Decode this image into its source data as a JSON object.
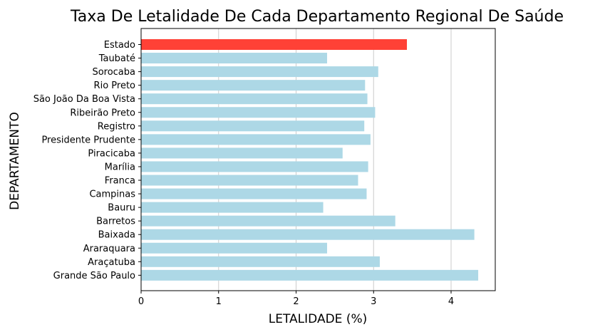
{
  "chart_data": {
    "type": "bar",
    "orientation": "horizontal",
    "title": "Taxa De Letalidade De Cada Departamento Regional De Saúde",
    "xlabel": "LETALIDADE (%)",
    "ylabel": "DEPARTAMENTO",
    "xlim": [
      0,
      4.57
    ],
    "xticks": [
      0,
      1,
      2,
      3,
      4
    ],
    "grid": "vertical",
    "categories": [
      "Estado",
      "Taubaté",
      "Sorocaba",
      "Rio Preto",
      "São João Da Boa Vista",
      "Ribeirão Preto",
      "Registro",
      "Presidente Prudente",
      "Piracicaba",
      "Marília",
      "Franca",
      "Campinas",
      "Bauru",
      "Barretos",
      "Baixada",
      "Araraquara",
      "Araçatuba",
      "Grande São Paulo"
    ],
    "values": [
      3.43,
      2.4,
      3.06,
      2.89,
      2.92,
      3.02,
      2.88,
      2.96,
      2.6,
      2.93,
      2.8,
      2.91,
      2.35,
      3.28,
      4.3,
      2.4,
      3.08,
      4.35
    ],
    "colors": [
      "#ff4136",
      "#add8e6",
      "#add8e6",
      "#add8e6",
      "#add8e6",
      "#add8e6",
      "#add8e6",
      "#add8e6",
      "#add8e6",
      "#add8e6",
      "#add8e6",
      "#add8e6",
      "#add8e6",
      "#add8e6",
      "#add8e6",
      "#add8e6",
      "#add8e6",
      "#add8e6"
    ]
  }
}
